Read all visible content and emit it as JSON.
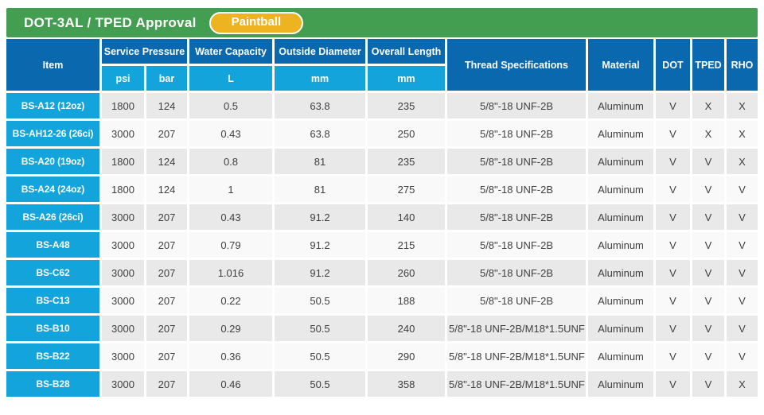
{
  "colors": {
    "green": "#449e52",
    "header_blue": "#0a68af",
    "cyan": "#14a4dc",
    "badge_yellow": "#eeb321",
    "row_gray": "#e9e9e9",
    "row_light": "#f9f9f9",
    "text_dark": "#404040"
  },
  "chart_data": {
    "type": "table",
    "title": "DOT-3AL / TPED Approval",
    "badge": "Paintball",
    "column_groups": [
      {
        "label": "Item"
      },
      {
        "label": "Service Pressure",
        "sub": [
          "psi",
          "bar"
        ]
      },
      {
        "label": "Water Capacity",
        "sub": [
          "L"
        ]
      },
      {
        "label": "Outside Diameter",
        "sub": [
          "mm"
        ]
      },
      {
        "label": "Overall Length",
        "sub": [
          "mm"
        ]
      },
      {
        "label": "Thread Specifications"
      },
      {
        "label": "Material"
      },
      {
        "label": "DOT"
      },
      {
        "label": "TPED"
      },
      {
        "label": "RHO"
      }
    ],
    "rows": [
      {
        "item": "BS-A12 (12oz)",
        "psi": "1800",
        "bar": "124",
        "capacity_l": "0.5",
        "outside_diameter_mm": "63.8",
        "overall_length_mm": "235",
        "thread": "5/8\"-18 UNF-2B",
        "material": "Aluminum",
        "dot": "V",
        "tped": "X",
        "rho": "X"
      },
      {
        "item": "BS-AH12-26 (26ci)",
        "psi": "3000",
        "bar": "207",
        "capacity_l": "0.43",
        "outside_diameter_mm": "63.8",
        "overall_length_mm": "250",
        "thread": "5/8\"-18 UNF-2B",
        "material": "Aluminum",
        "dot": "V",
        "tped": "X",
        "rho": "X"
      },
      {
        "item": "BS-A20 (19oz)",
        "psi": "1800",
        "bar": "124",
        "capacity_l": "0.8",
        "outside_diameter_mm": "81",
        "overall_length_mm": "235",
        "thread": "5/8\"-18 UNF-2B",
        "material": "Aluminum",
        "dot": "V",
        "tped": "V",
        "rho": "X"
      },
      {
        "item": "BS-A24 (24oz)",
        "psi": "1800",
        "bar": "124",
        "capacity_l": "1",
        "outside_diameter_mm": "81",
        "overall_length_mm": "275",
        "thread": "5/8\"-18 UNF-2B",
        "material": "Aluminum",
        "dot": "V",
        "tped": "V",
        "rho": "V"
      },
      {
        "item": "BS-A26 (26ci)",
        "psi": "3000",
        "bar": "207",
        "capacity_l": "0.43",
        "outside_diameter_mm": "91.2",
        "overall_length_mm": "140",
        "thread": "5/8\"-18 UNF-2B",
        "material": "Aluminum",
        "dot": "V",
        "tped": "V",
        "rho": "V"
      },
      {
        "item": "BS-A48",
        "psi": "3000",
        "bar": "207",
        "capacity_l": "0.79",
        "outside_diameter_mm": "91.2",
        "overall_length_mm": "215",
        "thread": "5/8\"-18 UNF-2B",
        "material": "Aluminum",
        "dot": "V",
        "tped": "V",
        "rho": "V"
      },
      {
        "item": "BS-C62",
        "psi": "3000",
        "bar": "207",
        "capacity_l": "1.016",
        "outside_diameter_mm": "91.2",
        "overall_length_mm": "260",
        "thread": "5/8\"-18 UNF-2B",
        "material": "Aluminum",
        "dot": "V",
        "tped": "V",
        "rho": "V"
      },
      {
        "item": "BS-C13",
        "psi": "3000",
        "bar": "207",
        "capacity_l": "0.22",
        "outside_diameter_mm": "50.5",
        "overall_length_mm": "188",
        "thread": "5/8\"-18 UNF-2B",
        "material": "Aluminum",
        "dot": "V",
        "tped": "V",
        "rho": "V"
      },
      {
        "item": "BS-B10",
        "psi": "3000",
        "bar": "207",
        "capacity_l": "0.29",
        "outside_diameter_mm": "50.5",
        "overall_length_mm": "240",
        "thread": "5/8\"-18 UNF-2B/M18*1.5UNF",
        "material": "Aluminum",
        "dot": "V",
        "tped": "V",
        "rho": "V"
      },
      {
        "item": "BS-B22",
        "psi": "3000",
        "bar": "207",
        "capacity_l": "0.36",
        "outside_diameter_mm": "50.5",
        "overall_length_mm": "290",
        "thread": "5/8\"-18 UNF-2B/M18*1.5UNF",
        "material": "Aluminum",
        "dot": "V",
        "tped": "V",
        "rho": "V"
      },
      {
        "item": "BS-B28",
        "psi": "3000",
        "bar": "207",
        "capacity_l": "0.46",
        "outside_diameter_mm": "50.5",
        "overall_length_mm": "358",
        "thread": "5/8\"-18 UNF-2B/M18*1.5UNF",
        "material": "Aluminum",
        "dot": "V",
        "tped": "V",
        "rho": "X"
      }
    ]
  }
}
